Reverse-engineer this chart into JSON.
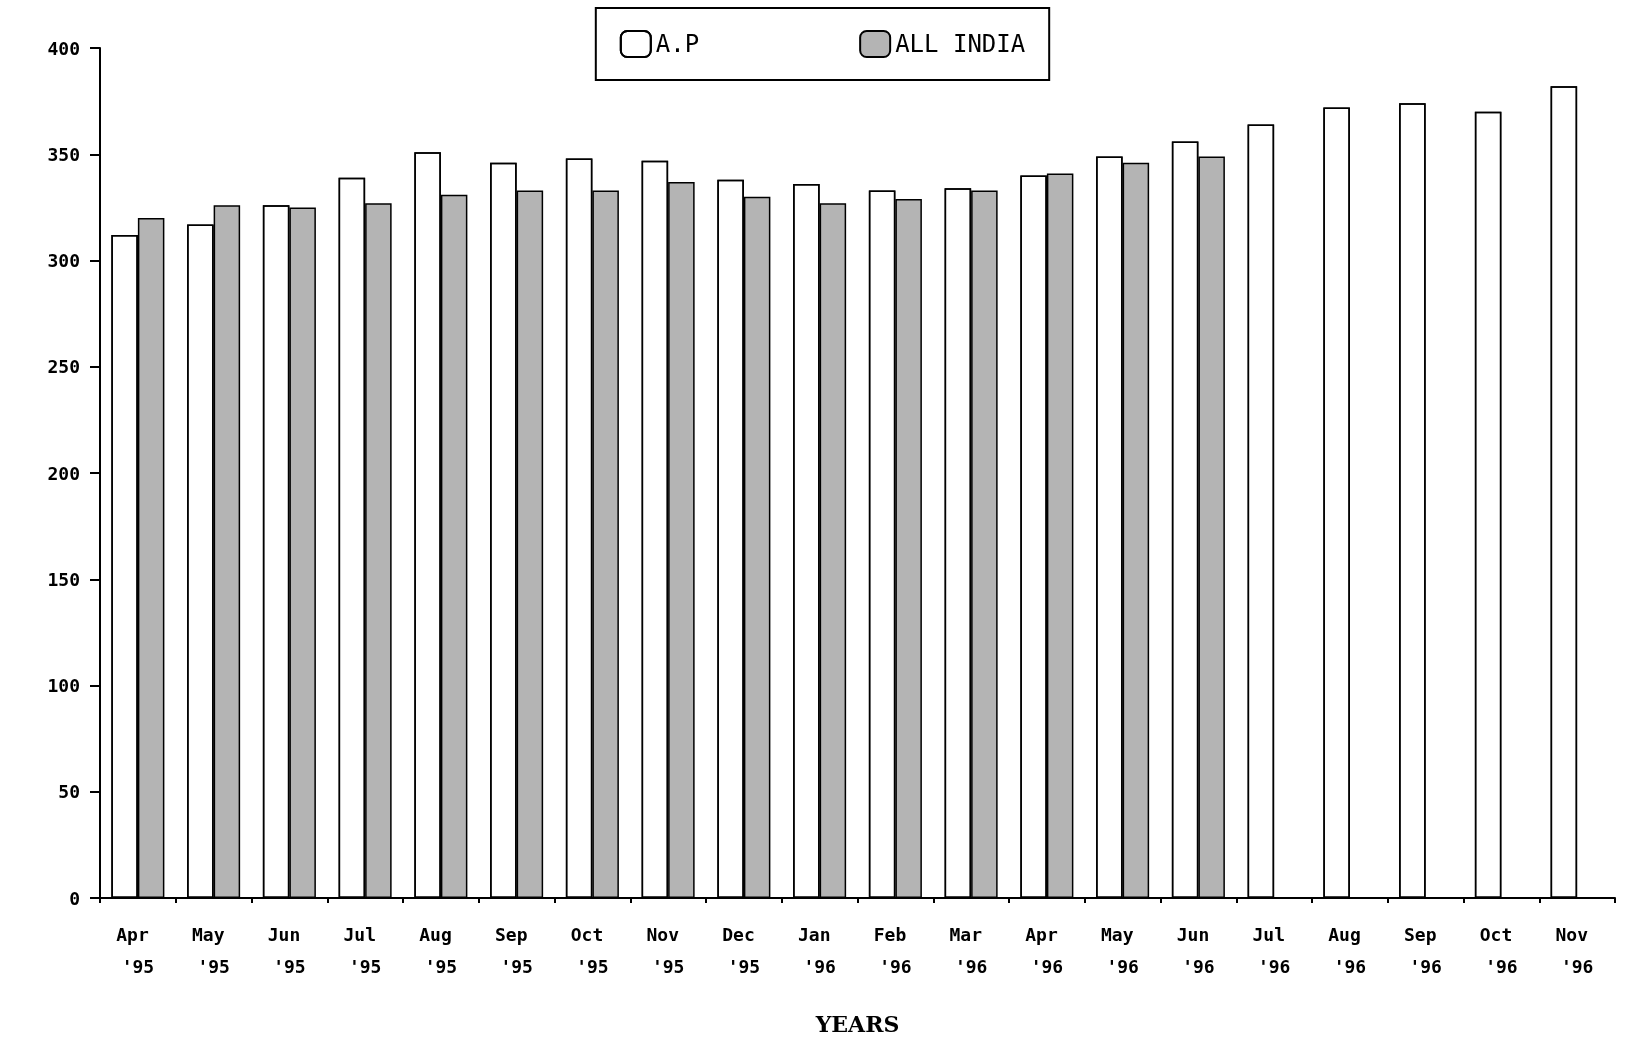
{
  "chart_data": {
    "type": "bar",
    "xlabel": "YEARS",
    "categories": [
      "Apr '95",
      "May '95",
      "Jun '95",
      "Jul '95",
      "Aug '95",
      "Sep '95",
      "Oct '95",
      "Nov '95",
      "Dec '95",
      "Jan '96",
      "Feb '96",
      "Mar '96",
      "Apr '96",
      "May '96",
      "Jun '96",
      "Jul '96",
      "Aug '96",
      "Sep '96",
      "Oct '96",
      "Nov '96"
    ],
    "series": [
      {
        "name": "A.P",
        "color": "#ffffff",
        "values": [
          312,
          317,
          326,
          339,
          351,
          346,
          348,
          347,
          338,
          336,
          333,
          334,
          340,
          349,
          356,
          364,
          372,
          374,
          370,
          382
        ]
      },
      {
        "name": "ALL INDIA",
        "color": "#b4b4b4",
        "values": [
          320,
          326,
          325,
          327,
          331,
          333,
          333,
          337,
          330,
          327,
          329,
          333,
          341,
          346,
          349,
          null,
          null,
          null,
          null,
          null
        ]
      }
    ],
    "ylim": [
      0,
      400
    ],
    "yticks": [
      0,
      50,
      100,
      150,
      200,
      250,
      300,
      350,
      400
    ],
    "grid": false,
    "legend": "top"
  }
}
